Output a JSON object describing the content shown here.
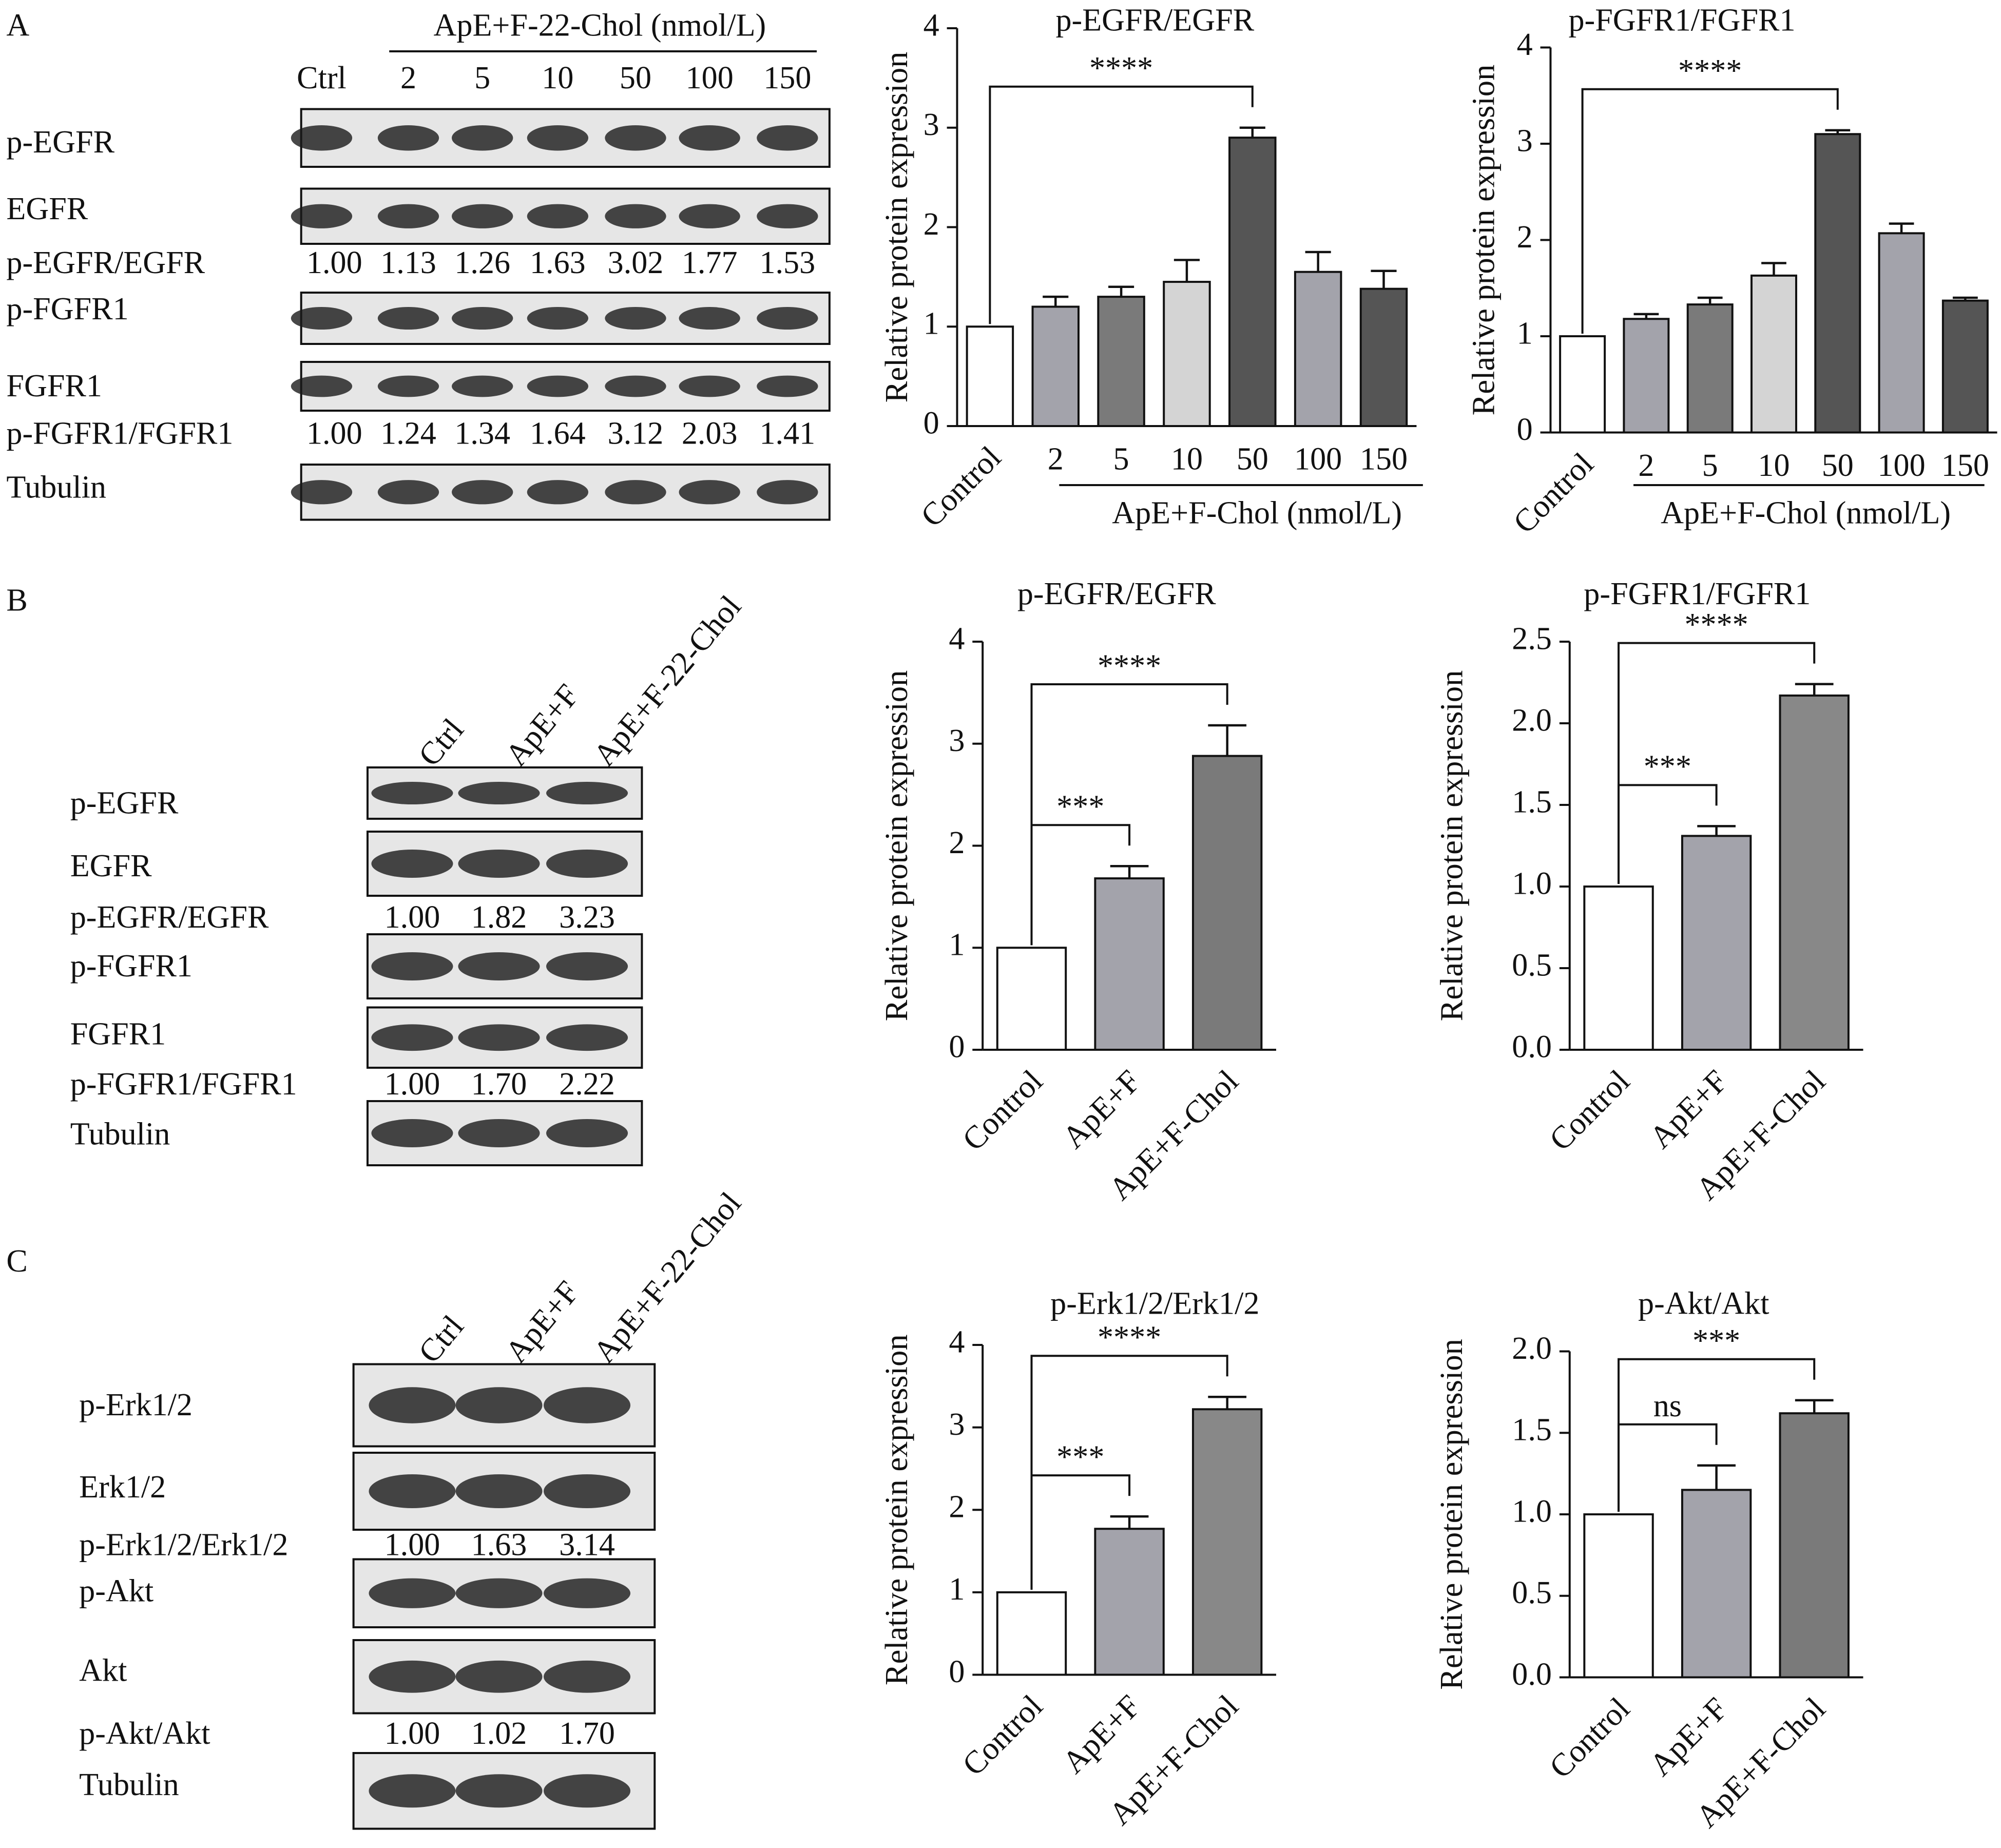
{
  "chart_data": [
    {
      "type": "bar",
      "title": "p-EGFR/EGFR",
      "ylabel": "Relative protein expression",
      "group_label": "ApE+F-Chol (nmol/L)",
      "categories": [
        "Control",
        "2",
        "5",
        "10",
        "50",
        "100",
        "150"
      ],
      "values": [
        1.0,
        1.2,
        1.3,
        1.45,
        2.9,
        1.55,
        1.38
      ],
      "errors": [
        0,
        0.1,
        0.1,
        0.22,
        0.1,
        0.2,
        0.18
      ],
      "colors": [
        "#ffffff",
        "#a3a3ab",
        "#7a7a7a",
        "#d4d4d4",
        "#555555",
        "#a3a3ab",
        "#555555"
      ],
      "ylim": [
        0,
        4
      ],
      "yticks": [
        0,
        1,
        2,
        3,
        4
      ],
      "comparisons": [
        {
          "pair": [
            "Control",
            "50"
          ],
          "label": "****"
        }
      ]
    },
    {
      "type": "bar",
      "title": "p-FGFR1/FGFR1",
      "ylabel": "Relative protein expression",
      "group_label": "ApE+F-Chol (nmol/L)",
      "categories": [
        "Control",
        "2",
        "5",
        "10",
        "50",
        "100",
        "150"
      ],
      "values": [
        1.0,
        1.18,
        1.33,
        1.63,
        3.1,
        2.07,
        1.37
      ],
      "errors": [
        0,
        0.05,
        0.07,
        0.13,
        0.04,
        0.1,
        0.03
      ],
      "colors": [
        "#ffffff",
        "#a3a3ab",
        "#7a7a7a",
        "#d4d4d4",
        "#555555",
        "#a3a3ab",
        "#555555"
      ],
      "ylim": [
        0,
        4
      ],
      "yticks": [
        0,
        1,
        2,
        3,
        4
      ],
      "comparisons": [
        {
          "pair": [
            "Control",
            "50"
          ],
          "label": "****"
        }
      ]
    },
    {
      "type": "bar",
      "title": "p-EGFR/EGFR",
      "ylabel": "Relative protein expression",
      "categories": [
        "Control",
        "ApE+F",
        "ApE+F-Chol"
      ],
      "values": [
        1.0,
        1.68,
        2.88
      ],
      "errors": [
        0,
        0.12,
        0.3
      ],
      "colors": [
        "#ffffff",
        "#a3a3ab",
        "#7a7a7a"
      ],
      "ylim": [
        0,
        4
      ],
      "yticks": [
        0,
        1,
        2,
        3,
        4
      ],
      "comparisons": [
        {
          "pair": [
            "Control",
            "ApE+F"
          ],
          "label": "***"
        },
        {
          "pair": [
            "Control",
            "ApE+F-Chol"
          ],
          "label": "****"
        }
      ]
    },
    {
      "type": "bar",
      "title": "p-FGFR1/FGFR1",
      "ylabel": "Relative protein expression",
      "categories": [
        "Control",
        "ApE+F",
        "ApE+F-Chol"
      ],
      "values": [
        1.0,
        1.31,
        2.17
      ],
      "errors": [
        0,
        0.06,
        0.07
      ],
      "colors": [
        "#ffffff",
        "#a3a3ab",
        "#888888"
      ],
      "ylim": [
        0,
        2.5
      ],
      "yticks": [
        {
          "value": 0,
          "label": "0.0"
        },
        0.5,
        {
          "value": 1,
          "label": "1.0"
        },
        1.5,
        {
          "value": 2,
          "label": "2.0"
        },
        2.5
      ],
      "comparisons": [
        {
          "pair": [
            "Control",
            "ApE+F"
          ],
          "label": "***"
        },
        {
          "pair": [
            "Control",
            "ApE+F-Chol"
          ],
          "label": "****"
        }
      ]
    },
    {
      "type": "bar",
      "title": "p-Erk1/2/Erk1/2",
      "ylabel": "Relative protein expression",
      "categories": [
        "Control",
        "ApE+F",
        "ApE+F-Chol"
      ],
      "values": [
        1.0,
        1.77,
        3.22
      ],
      "errors": [
        0,
        0.15,
        0.15
      ],
      "colors": [
        "#ffffff",
        "#a3a3ab",
        "#888888"
      ],
      "ylim": [
        0,
        4
      ],
      "yticks": [
        0,
        1,
        2,
        3,
        4
      ],
      "comparisons": [
        {
          "pair": [
            "Control",
            "ApE+F"
          ],
          "label": "***"
        },
        {
          "pair": [
            "Control",
            "ApE+F-Chol"
          ],
          "label": "****"
        }
      ]
    },
    {
      "type": "bar",
      "title": "p-Akt/Akt",
      "ylabel": "Relative protein expression",
      "categories": [
        "Control",
        "ApE+F",
        "ApE+F-Chol"
      ],
      "values": [
        1.0,
        1.15,
        1.62
      ],
      "errors": [
        0,
        0.15,
        0.08
      ],
      "colors": [
        "#ffffff",
        "#a3a3ab",
        "#7a7a7a"
      ],
      "ylim": [
        0,
        2
      ],
      "yticks": [
        {
          "value": 0,
          "label": "0.0"
        },
        0.5,
        {
          "value": 1,
          "label": "1.0"
        },
        1.5,
        {
          "value": 2,
          "label": "2.0"
        }
      ],
      "comparisons": [
        {
          "pair": [
            "Control",
            "ApE+F"
          ],
          "label": "ns"
        },
        {
          "pair": [
            "Control",
            "ApE+F-Chol"
          ],
          "label": "***"
        }
      ]
    }
  ],
  "blots": [
    {
      "panel": "A",
      "header": "ApE+F-22-Chol (nmol/L)",
      "lanes": [
        "Ctrl",
        "2",
        "5",
        "10",
        "50",
        "100",
        "150"
      ],
      "rows": [
        {
          "label": "p-EGFR"
        },
        {
          "label": "EGFR"
        },
        {
          "label": "p-EGFR/EGFR",
          "ratios": [
            "1.00",
            "1.13",
            "1.26",
            "1.63",
            "3.02",
            "1.77",
            "1.53"
          ]
        },
        {
          "label": "p-FGFR1"
        },
        {
          "label": "FGFR1"
        },
        {
          "label": "p-FGFR1/FGFR1",
          "ratios": [
            "1.00",
            "1.24",
            "1.34",
            "1.64",
            "3.12",
            "2.03",
            "1.41"
          ]
        },
        {
          "label": "Tubulin"
        }
      ]
    },
    {
      "panel": "B",
      "lanes": [
        "Ctrl",
        "ApE+F",
        "ApE+F-22-Chol"
      ],
      "rows": [
        {
          "label": "p-EGFR"
        },
        {
          "label": "EGFR"
        },
        {
          "label": "p-EGFR/EGFR",
          "ratios": [
            "1.00",
            "1.82",
            "3.23"
          ]
        },
        {
          "label": "p-FGFR1"
        },
        {
          "label": "FGFR1"
        },
        {
          "label": "p-FGFR1/FGFR1",
          "ratios": [
            "1.00",
            "1.70",
            "2.22"
          ]
        },
        {
          "label": "Tubulin"
        }
      ]
    },
    {
      "panel": "C",
      "lanes": [
        "Ctrl",
        "ApE+F",
        "ApE+F-22-Chol"
      ],
      "rows": [
        {
          "label": "p-Erk1/2"
        },
        {
          "label": "Erk1/2"
        },
        {
          "label": "p-Erk1/2/Erk1/2",
          "ratios": [
            "1.00",
            "1.63",
            "3.14"
          ]
        },
        {
          "label": "p-Akt"
        },
        {
          "label": "Akt"
        },
        {
          "label": "p-Akt/Akt",
          "ratios": [
            "1.00",
            "1.02",
            "1.70"
          ]
        },
        {
          "label": "Tubulin"
        }
      ]
    }
  ]
}
